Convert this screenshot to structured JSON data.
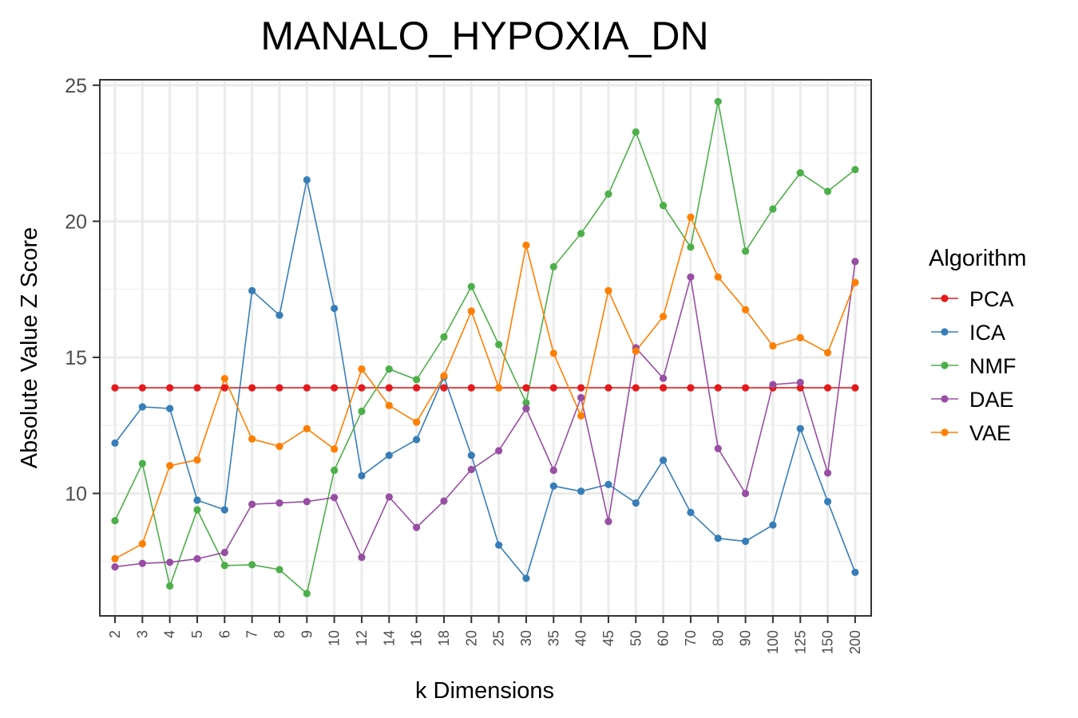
{
  "chart_data": {
    "type": "line",
    "title": "MANALO_HYPOXIA_DN",
    "xlabel": "k Dimensions",
    "ylabel": "Absolute Value Z Score",
    "categories": [
      "2",
      "3",
      "4",
      "5",
      "6",
      "7",
      "8",
      "9",
      "10",
      "12",
      "14",
      "16",
      "18",
      "20",
      "25",
      "30",
      "35",
      "40",
      "45",
      "50",
      "60",
      "70",
      "80",
      "90",
      "100",
      "125",
      "150",
      "200"
    ],
    "ylim": [
      5.5,
      25.2
    ],
    "yticks": [
      "10",
      "15",
      "20",
      "25"
    ],
    "grid": true,
    "legend_title": "Algorithm",
    "legend_position": "right",
    "series": [
      {
        "name": "PCA",
        "color": "#e41a1c",
        "values": [
          13.88,
          13.88,
          13.88,
          13.88,
          13.88,
          13.88,
          13.88,
          13.88,
          13.88,
          13.88,
          13.88,
          13.88,
          13.88,
          13.88,
          13.88,
          13.88,
          13.88,
          13.88,
          13.88,
          13.88,
          13.88,
          13.88,
          13.88,
          13.88,
          13.88,
          13.88,
          13.88,
          13.88
        ]
      },
      {
        "name": "ICA",
        "color": "#377eb8",
        "values": [
          11.85,
          13.18,
          13.12,
          9.75,
          9.4,
          17.45,
          16.55,
          21.52,
          16.8,
          10.65,
          11.4,
          11.98,
          14.28,
          11.4,
          8.1,
          6.88,
          10.27,
          10.08,
          10.33,
          9.65,
          11.22,
          9.3,
          8.35,
          8.24,
          8.84,
          12.38,
          9.7,
          7.1
        ]
      },
      {
        "name": "NMF",
        "color": "#4daf4a",
        "values": [
          9.0,
          11.1,
          6.6,
          9.4,
          7.35,
          7.38,
          7.2,
          6.32,
          10.85,
          13.02,
          14.57,
          14.18,
          15.75,
          17.6,
          15.47,
          13.33,
          18.33,
          19.55,
          21.0,
          23.28,
          20.58,
          19.05,
          24.4,
          18.9,
          20.45,
          21.78,
          21.1,
          21.9
        ]
      },
      {
        "name": "DAE",
        "color": "#984ea3",
        "values": [
          7.3,
          7.43,
          7.47,
          7.6,
          7.83,
          9.6,
          9.65,
          9.7,
          9.85,
          7.65,
          9.87,
          8.75,
          9.72,
          10.88,
          11.57,
          13.12,
          10.85,
          13.52,
          8.97,
          15.35,
          14.23,
          17.95,
          11.65,
          10.0,
          14.0,
          14.08,
          10.75,
          18.52
        ]
      },
      {
        "name": "VAE",
        "color": "#ff7f00",
        "values": [
          7.6,
          8.15,
          11.02,
          11.23,
          14.22,
          12.0,
          11.73,
          12.38,
          11.63,
          14.57,
          13.23,
          12.62,
          14.32,
          16.7,
          13.88,
          19.12,
          15.15,
          12.85,
          17.45,
          15.23,
          16.5,
          20.15,
          17.95,
          16.75,
          15.42,
          15.72,
          15.17,
          17.75
        ]
      }
    ]
  }
}
